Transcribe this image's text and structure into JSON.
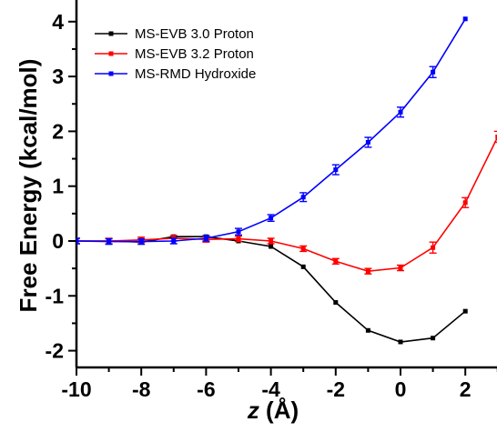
{
  "chart_data": {
    "type": "line",
    "title": "",
    "xlabel": "z (Å)",
    "xlabel_italic_part": "z",
    "xlabel_rest": " (Å)",
    "ylabel": "Free Energy (kcal/mol)",
    "xlim": [
      -10,
      3
    ],
    "ylim": [
      -2.3,
      4.1
    ],
    "x_ticks": [
      -10,
      -8,
      -6,
      -4,
      -2,
      0,
      2
    ],
    "y_ticks": [
      -2,
      -1,
      0,
      1,
      2,
      3,
      4
    ],
    "grid": false,
    "legend_position": "top-left",
    "series": [
      {
        "name": "MS-EVB 3.0 Proton",
        "color": "#000000",
        "marker": "square",
        "points": [
          {
            "x": -10,
            "y": 0.0
          },
          {
            "x": -9,
            "y": 0.0
          },
          {
            "x": -8,
            "y": -0.02
          },
          {
            "x": -7,
            "y": 0.08
          },
          {
            "x": -6,
            "y": 0.08
          },
          {
            "x": -5,
            "y": 0.0
          },
          {
            "x": -4,
            "y": -0.1
          },
          {
            "x": -3,
            "y": -0.47
          },
          {
            "x": -2,
            "y": -1.12
          },
          {
            "x": -1,
            "y": -1.63
          },
          {
            "x": 0,
            "y": -1.84
          },
          {
            "x": 1,
            "y": -1.77
          },
          {
            "x": 2,
            "y": -1.28
          }
        ]
      },
      {
        "name": "MS-EVB 3.2 Proton",
        "color": "#ff0000",
        "marker": "square",
        "points": [
          {
            "x": -10,
            "y": 0.0,
            "err": 0.05
          },
          {
            "x": -9,
            "y": 0.0,
            "err": 0.05
          },
          {
            "x": -8,
            "y": 0.02,
            "err": 0.05
          },
          {
            "x": -7,
            "y": 0.05,
            "err": 0.05
          },
          {
            "x": -6,
            "y": 0.03,
            "err": 0.05
          },
          {
            "x": -5,
            "y": 0.04,
            "err": 0.05
          },
          {
            "x": -4,
            "y": 0.0,
            "err": 0.05
          },
          {
            "x": -3,
            "y": -0.14,
            "err": 0.05
          },
          {
            "x": -2,
            "y": -0.37,
            "err": 0.05
          },
          {
            "x": -1,
            "y": -0.55,
            "err": 0.05
          },
          {
            "x": 0,
            "y": -0.49,
            "err": 0.05
          },
          {
            "x": 1,
            "y": -0.12,
            "err": 0.1
          },
          {
            "x": 2,
            "y": 0.7,
            "err": 0.09
          },
          {
            "x": 3,
            "y": 1.9,
            "err": 0.1
          }
        ]
      },
      {
        "name": "MS-RMD Hydroxide",
        "color": "#0000ff",
        "marker": "square",
        "points": [
          {
            "x": -10,
            "y": 0.0,
            "err": 0.05
          },
          {
            "x": -9,
            "y": -0.01,
            "err": 0.05
          },
          {
            "x": -8,
            "y": -0.01,
            "err": 0.05
          },
          {
            "x": -7,
            "y": 0.0,
            "err": 0.05
          },
          {
            "x": -6,
            "y": 0.05,
            "err": 0.05
          },
          {
            "x": -5,
            "y": 0.17,
            "err": 0.06
          },
          {
            "x": -4,
            "y": 0.42,
            "err": 0.06
          },
          {
            "x": -3,
            "y": 0.8,
            "err": 0.08
          },
          {
            "x": -2,
            "y": 1.3,
            "err": 0.09
          },
          {
            "x": -1,
            "y": 1.8,
            "err": 0.09
          },
          {
            "x": 0,
            "y": 2.35,
            "err": 0.09
          },
          {
            "x": 1,
            "y": 3.08,
            "err": 0.1
          },
          {
            "x": 2,
            "y": 4.05,
            "err": 0.0
          }
        ]
      }
    ]
  }
}
